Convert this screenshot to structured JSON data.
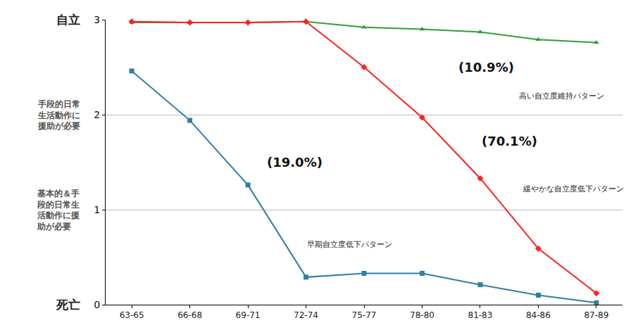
{
  "chart_data": {
    "type": "line",
    "categories": [
      "63-65",
      "66-68",
      "69-71",
      "72-74",
      "75-77",
      "78-80",
      "81-83",
      "84-86",
      "87-89"
    ],
    "series": [
      {
        "name": "高い自立度維持パターン",
        "annotation": "(10.9%)",
        "color": "#2e9e3a",
        "marker": "triangle-up",
        "values": [
          2.97,
          2.97,
          2.97,
          2.98,
          2.92,
          2.9,
          2.87,
          2.79,
          2.76
        ]
      },
      {
        "name": "緩やかな自立度低下パターン",
        "annotation": "(70.1%)",
        "color": "#ff2222",
        "marker": "diamond",
        "values": [
          2.98,
          2.97,
          2.97,
          2.98,
          2.5,
          1.97,
          1.33,
          0.59,
          0.12
        ]
      },
      {
        "name": "早期自立度低下パターン",
        "annotation": "(19.0%)",
        "color": "#2f7fa3",
        "marker": "square",
        "values": [
          2.46,
          1.94,
          1.26,
          0.29,
          0.33,
          0.33,
          0.21,
          0.1,
          0.02
        ]
      }
    ],
    "ylim": [
      0,
      3
    ],
    "yticks": [
      0,
      1,
      2,
      3
    ],
    "y_level_labels": [
      {
        "value": 3,
        "label": "自立"
      },
      {
        "value": 2,
        "label": "手段的日常生活動作に援助が必要"
      },
      {
        "value": 1,
        "label": "基本的＆手段的日常生活動作に援助が必要"
      },
      {
        "value": 0,
        "label": "死亡"
      }
    ],
    "grid": true,
    "legend": "none"
  }
}
